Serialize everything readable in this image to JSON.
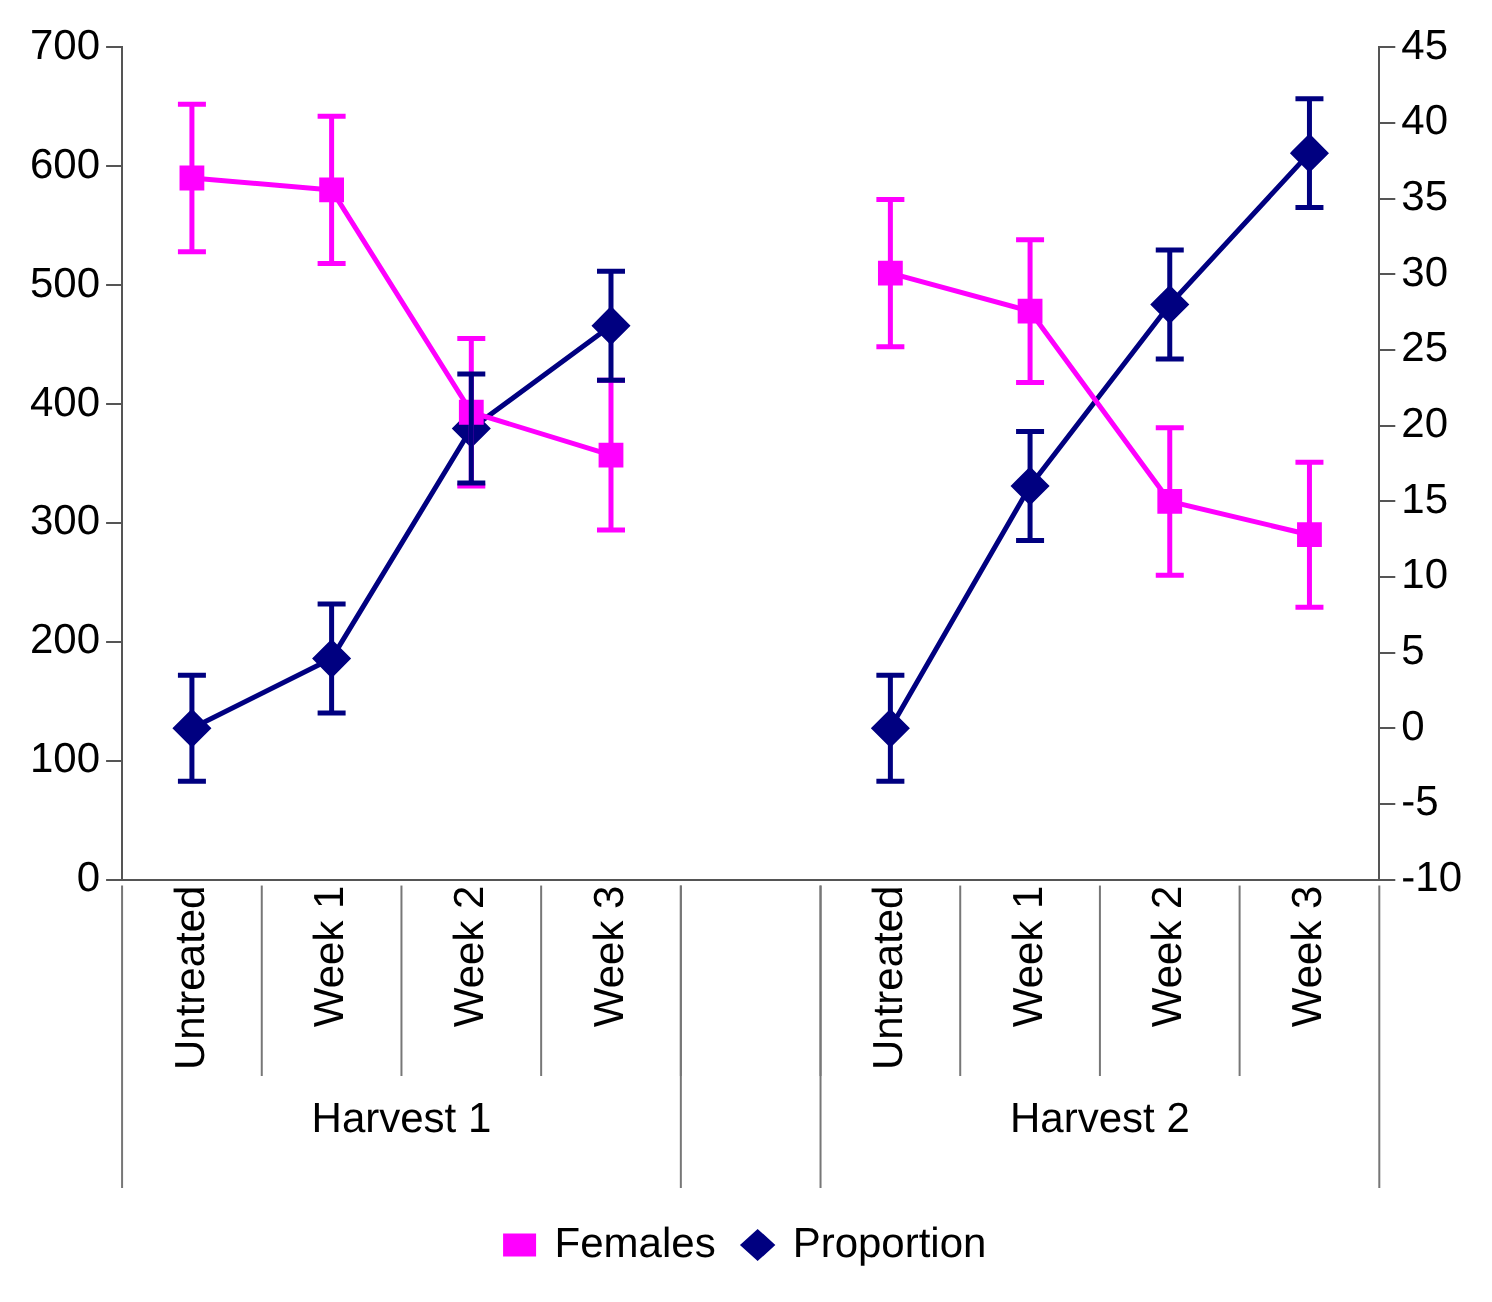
{
  "chart_data": {
    "type": "line",
    "categories": [
      "Untreated",
      "Week 1",
      "Week 2",
      "Week 3",
      null,
      "Untreated",
      "Week 1",
      "Week 2",
      "Week 3"
    ],
    "series": [
      {
        "name": "Females",
        "color": "#ff00ff",
        "marker": "square",
        "values": [
          590,
          580,
          393,
          357,
          null,
          510,
          478,
          318,
          290
        ],
        "errors": [
          62,
          62,
          62,
          63,
          null,
          62,
          60,
          62,
          61
        ]
      },
      {
        "name": "Proportion",
        "color": "#000080",
        "marker": "diamond",
        "axis": "y2",
        "values": [
          0,
          4.6,
          19.8,
          26.6,
          null,
          0,
          16,
          28,
          38
        ],
        "errors": [
          3.5,
          3.6,
          3.6,
          3.6,
          null,
          3.5,
          3.6,
          3.6,
          3.6
        ]
      }
    ],
    "ylim": [
      0,
      700
    ],
    "yticks": [
      0,
      100,
      200,
      300,
      400,
      500,
      600,
      700
    ],
    "y2lim": [
      -10,
      45
    ],
    "y2ticks": [
      -10,
      -5,
      0,
      5,
      10,
      15,
      20,
      25,
      30,
      35,
      40,
      45
    ],
    "annotations": [
      "Harvest 1",
      "Harvest 2"
    ],
    "grid": false,
    "legend": "bottom"
  }
}
